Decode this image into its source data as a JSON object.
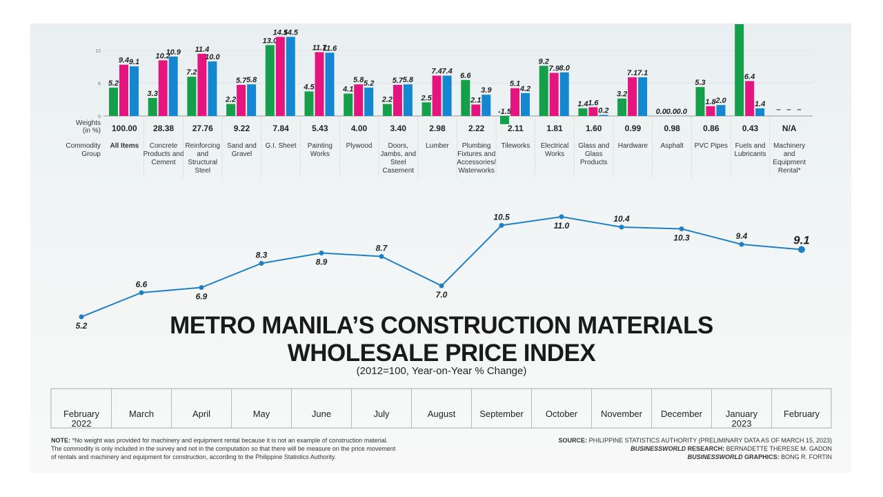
{
  "colors": {
    "green": "#14a04a",
    "pink": "#e5157f",
    "blue": "#1487d0",
    "line": "#1f7fc4"
  },
  "chart_data": [
    {
      "type": "bar",
      "yticks": [
        0,
        6,
        12
      ],
      "weights_label": "Weights (in %)",
      "group_label": "Commodity Group",
      "categories": [
        "All Items",
        "Concrete Products and Cement",
        "Reinforcing and Structural Steel",
        "Sand and Gravel",
        "G.I. Sheet",
        "Painting Works",
        "Plywood",
        "Doors, Jambs, and Steel Casement",
        "Lumber",
        "Plumbing Fixtures and Accessories/ Waterworks",
        "Tileworks",
        "Electrical Works",
        "Glass and Glass Products",
        "Hardware",
        "Asphalt",
        "PVC Pipes",
        "Fuels and Lubricants",
        "Machinery and Equipment Rental*"
      ],
      "weights": [
        "100.00",
        "28.38",
        "27.76",
        "9.22",
        "7.84",
        "5.43",
        "4.00",
        "3.40",
        "2.98",
        "2.22",
        "2.11",
        "1.81",
        "1.60",
        "0.99",
        "0.98",
        "0.86",
        "0.43",
        "N/A"
      ],
      "series": [
        {
          "color": "green",
          "values": [
            5.2,
            3.3,
            7.2,
            2.2,
            13.0,
            4.5,
            4.1,
            2.2,
            2.5,
            6.6,
            -1.5,
            9.2,
            1.4,
            3.2,
            0.0,
            5.3,
            null,
            null
          ]
        },
        {
          "color": "pink",
          "values": [
            9.4,
            10.2,
            11.4,
            5.7,
            14.5,
            11.7,
            5.8,
            5.7,
            7.4,
            2.1,
            5.1,
            7.9,
            1.6,
            7.1,
            0.0,
            1.8,
            6.4,
            null
          ]
        },
        {
          "color": "blue",
          "values": [
            9.1,
            10.9,
            10.0,
            5.8,
            14.5,
            11.6,
            5.2,
            5.8,
            7.4,
            3.9,
            4.2,
            8.0,
            0.2,
            7.1,
            0.0,
            2.0,
            1.4,
            null
          ]
        }
      ],
      "clipped_bar_note": "Fuels and Lubricants green bar extends beyond top (unlabeled)"
    },
    {
      "type": "line",
      "title": "METRO MANILA’S CONSTRUCTION MATERIALS WHOLESALE PRICE INDEX",
      "subtitle": "(2012=100, Year-on-Year % Change)",
      "x": [
        "February",
        "March",
        "April",
        "May",
        "June",
        "July",
        "August",
        "September",
        "October",
        "November",
        "December",
        "January",
        "February"
      ],
      "years": {
        "0": "2022",
        "11": "2023"
      },
      "values": [
        5.2,
        6.6,
        6.9,
        8.3,
        8.9,
        8.7,
        7.0,
        10.5,
        11.0,
        10.4,
        10.3,
        9.4,
        9.1
      ],
      "label_below": [
        true,
        false,
        true,
        false,
        true,
        false,
        true,
        false,
        true,
        false,
        true,
        false,
        false
      ]
    }
  ],
  "footer": {
    "note_label": "NOTE:",
    "note": "*No weight was provided for machinery and equipment rental because it is not an example of construction material. The commodity is only included in the survey and not in the computation so that there will be measure on the price movement of rentals and machinery and equipment for construction, according to the Philippine Statistics Authority.",
    "source_label": "SOURCE:",
    "source": "PHILIPPINE STATISTICS AUTHORITY (PRELIMINARY DATA AS OF MARCH 15, 2023)",
    "research_brand": "BUSINESSWORLD",
    "research_label": "RESEARCH:",
    "research": "BERNADETTE THERESE M. GADON",
    "graphics_brand": "BUSINESSWORLD",
    "graphics_label": "GRAPHICS:",
    "graphics": "BONG R. FORTIN"
  }
}
